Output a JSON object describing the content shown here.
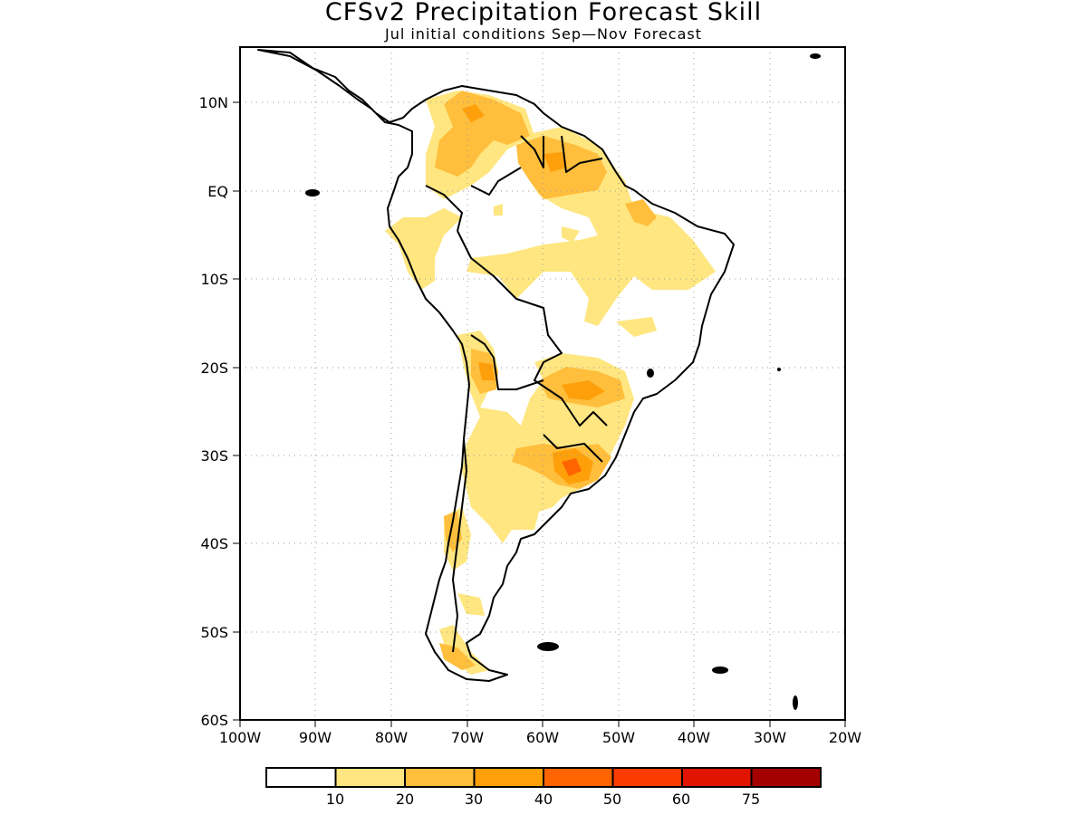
{
  "title": "CFSv2 Precipitation Forecast Skill",
  "subtitle": "Jul initial conditions   Sep—Nov Forecast",
  "map": {
    "region": "South America",
    "lon_range": [
      -100,
      -20
    ],
    "lat_range": [
      -60,
      15
    ],
    "grid": "dotted",
    "lat_labels": [
      "10N",
      "EQ",
      "10S",
      "20S",
      "30S",
      "40S",
      "50S",
      "60S"
    ],
    "lon_labels": [
      "100W",
      "90W",
      "80W",
      "70W",
      "60W",
      "50W",
      "40W",
      "30W",
      "20W"
    ]
  },
  "colorbar": {
    "labels": [
      "10",
      "20",
      "30",
      "40",
      "50",
      "60",
      "75"
    ],
    "colors": [
      "#ffffff",
      "#ffe680",
      "#ffbe3c",
      "#ffa00a",
      "#ff6400",
      "#fa3c00",
      "#e11400",
      "#a50000"
    ]
  }
}
